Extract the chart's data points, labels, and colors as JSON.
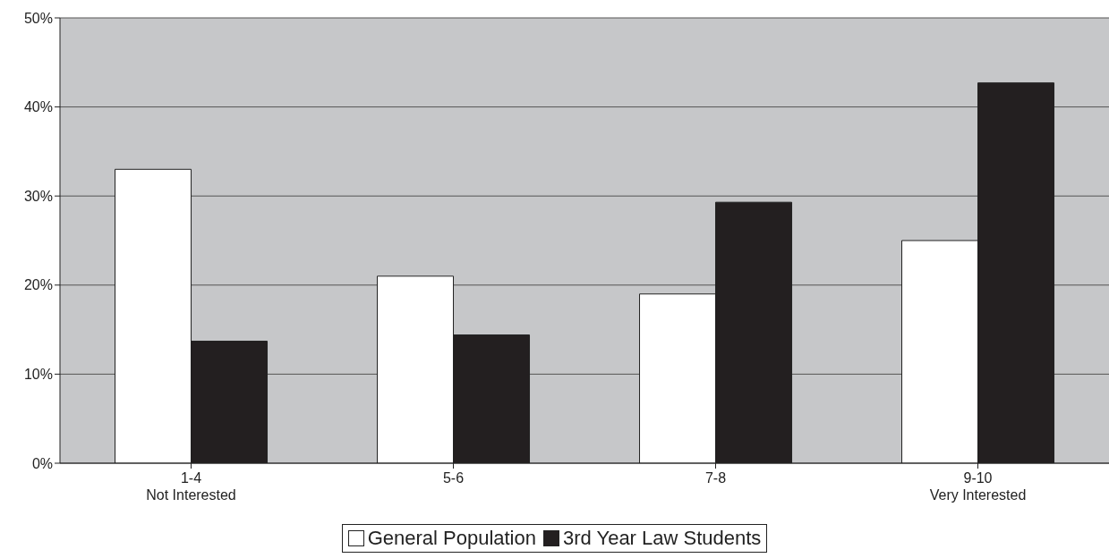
{
  "chart_data": {
    "type": "bar",
    "categories": [
      "1-4\nNot Interested",
      "5-6",
      "7-8",
      "9-10\nVery Interested"
    ],
    "series": [
      {
        "name": "General Population",
        "color": "#ffffff",
        "values": [
          33,
          21,
          19,
          25
        ]
      },
      {
        "name": "3rd Year Law Students",
        "color": "#231f20",
        "values": [
          13.7,
          14.4,
          29.3,
          42.7
        ]
      }
    ],
    "ylim": [
      0,
      50
    ],
    "yticks": [
      {
        "value": 0,
        "label": "0%"
      },
      {
        "value": 10,
        "label": "10%"
      },
      {
        "value": 20,
        "label": "20%"
      },
      {
        "value": 30,
        "label": "30%"
      },
      {
        "value": 40,
        "label": "40%"
      },
      {
        "value": 50,
        "label": "50%"
      }
    ],
    "grid": "y",
    "legend": "bottom"
  }
}
